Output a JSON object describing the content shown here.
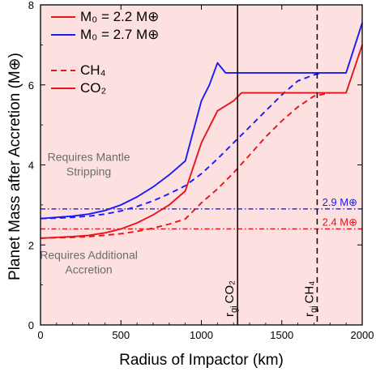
{
  "chart_data": {
    "type": "line",
    "xlabel": "Radius of Impactor (km)",
    "ylabel": "Planet Mass after Accretion (M⊕)",
    "xlim": [
      0,
      2000
    ],
    "ylim": [
      0,
      8
    ],
    "x_ticks": [
      0,
      500,
      1000,
      1500,
      2000
    ],
    "y_ticks": [
      0,
      2,
      4,
      6,
      8
    ],
    "grid": false,
    "background_color": "#fde0e0",
    "legend": {
      "placement": "top-left",
      "entries": [
        {
          "label": "M₀ = 2.2 M⊕",
          "color": "#e8141c",
          "dash": "solid"
        },
        {
          "label": "M₀ = 2.7 M⊕",
          "color": "#1a1aff",
          "dash": "solid"
        },
        {
          "label": "CH₄",
          "color": "#e8141c",
          "dash": "dashed"
        },
        {
          "label": "CO₂",
          "color": "#e8141c",
          "dash": "solid"
        }
      ]
    },
    "series": [
      {
        "color": "#1a1aff",
        "dash": "solid",
        "x": [
          0,
          100,
          200,
          300,
          400,
          500,
          600,
          700,
          800,
          900,
          1000,
          1050,
          1100,
          1150,
          1200,
          1300,
          1400,
          1500,
          1600,
          1700,
          1800,
          1900,
          2000
        ],
        "y": [
          2.66,
          2.69,
          2.72,
          2.77,
          2.86,
          3.0,
          3.2,
          3.45,
          3.75,
          4.1,
          5.6,
          6.0,
          6.55,
          6.3,
          6.3,
          6.3,
          6.3,
          6.3,
          6.3,
          6.3,
          6.3,
          6.3,
          7.55
        ]
      },
      {
        "color": "#1a1aff",
        "dash": "dashed",
        "x": [
          0,
          100,
          200,
          300,
          400,
          500,
          600,
          700,
          800,
          900,
          1000,
          1100,
          1200,
          1300,
          1400,
          1500,
          1600,
          1700,
          1750
        ],
        "y": [
          2.66,
          2.67,
          2.69,
          2.72,
          2.77,
          2.85,
          2.96,
          3.1,
          3.28,
          3.48,
          3.78,
          4.15,
          4.55,
          4.95,
          5.35,
          5.75,
          6.1,
          6.25,
          6.3
        ]
      },
      {
        "color": "#e8141c",
        "dash": "solid",
        "x": [
          0,
          100,
          200,
          300,
          400,
          500,
          600,
          700,
          800,
          900,
          1000,
          1100,
          1200,
          1250,
          1300,
          1400,
          1500,
          1600,
          1700,
          1800,
          1900,
          2000
        ],
        "y": [
          2.17,
          2.19,
          2.21,
          2.24,
          2.3,
          2.4,
          2.55,
          2.75,
          3.0,
          3.35,
          4.55,
          5.35,
          5.6,
          5.8,
          5.8,
          5.8,
          5.8,
          5.8,
          5.8,
          5.8,
          5.8,
          7.0
        ]
      },
      {
        "color": "#e8141c",
        "dash": "dashed",
        "x": [
          0,
          100,
          200,
          300,
          400,
          500,
          600,
          700,
          800,
          900,
          1000,
          1100,
          1200,
          1300,
          1400,
          1500,
          1600,
          1700,
          1800
        ],
        "y": [
          2.17,
          2.18,
          2.19,
          2.21,
          2.24,
          2.28,
          2.34,
          2.42,
          2.52,
          2.65,
          3.05,
          3.4,
          3.8,
          4.25,
          4.7,
          5.1,
          5.45,
          5.72,
          5.8
        ]
      }
    ],
    "vertical_lines": [
      {
        "x": 1225,
        "label": "CO₂",
        "sub": "gi",
        "dash": "solid"
      },
      {
        "x": 1720,
        "label": "CH₄",
        "sub": "gi",
        "dash": "dashed"
      }
    ],
    "horizontal_lines": [
      {
        "y": 2.9,
        "label": "2.9 M⊕",
        "color": "#1a1aff"
      },
      {
        "y": 2.4,
        "label": "2.4 M⊕",
        "color": "#e8141c"
      }
    ],
    "annotations": [
      {
        "lines": [
          "Requires Mantle",
          "Stripping"
        ],
        "x": 300,
        "y": 4.1
      },
      {
        "lines": [
          "Requires Additional",
          "Accretion"
        ],
        "x": 300,
        "y": 1.65
      }
    ]
  }
}
